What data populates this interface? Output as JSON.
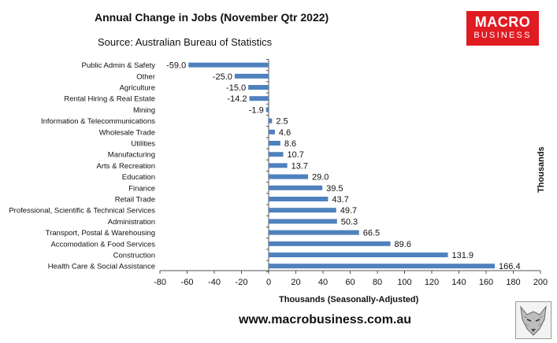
{
  "header": {
    "title": "Annual Change in Jobs (November Qtr 2022)",
    "subtitle": "Source: Australian Bureau of Statistics"
  },
  "logo": {
    "line1": "MACRO",
    "line2": "BUSINESS"
  },
  "footer": {
    "url": "www.macrobusiness.com.au"
  },
  "chart_data": {
    "type": "bar",
    "orientation": "horizontal",
    "title": "Annual Change in Jobs (November Qtr 2022)",
    "subtitle": "Source: Australian Bureau of Statistics",
    "xlabel": "Thousands (Seasonally-Adjusted)",
    "ylabel": "Thousands",
    "xlim": [
      -80,
      200
    ],
    "xticks": [
      -80,
      -60,
      -40,
      -20,
      0,
      20,
      40,
      60,
      80,
      100,
      120,
      140,
      160,
      180,
      200
    ],
    "grid": false,
    "bar_color": "#4f81bd",
    "categories": [
      "Public Admin & Safety",
      "Other",
      "Agriculture",
      "Rental Hiring & Real Estate",
      "Mining",
      "Information & Telecommunications",
      "Wholesale Trade",
      "Utilities",
      "Manufacturing",
      "Arts & Recreation",
      "Education",
      "Finance",
      "Retail Trade",
      "Professional, Scientific & Technical Services",
      "Administration",
      "Transport, Postal & Warehousing",
      "Accomodation & Food Services",
      "Construction",
      "Health Care & Social Assistance"
    ],
    "values": [
      -59.0,
      -25.0,
      -15.0,
      -14.2,
      -1.9,
      2.5,
      4.6,
      8.6,
      10.7,
      13.7,
      29.0,
      39.5,
      43.7,
      49.7,
      50.3,
      66.5,
      89.6,
      131.9,
      166.4
    ],
    "value_labels": [
      "-59.0",
      "-25.0",
      "-15.0",
      "-14.2",
      "-1.9",
      "2.5",
      "4.6",
      "8.6",
      "10.7",
      "13.7",
      "29.0",
      "39.5",
      "43.7",
      "49.7",
      "50.3",
      "66.5",
      "89.6",
      "131.9",
      "166.4"
    ]
  }
}
